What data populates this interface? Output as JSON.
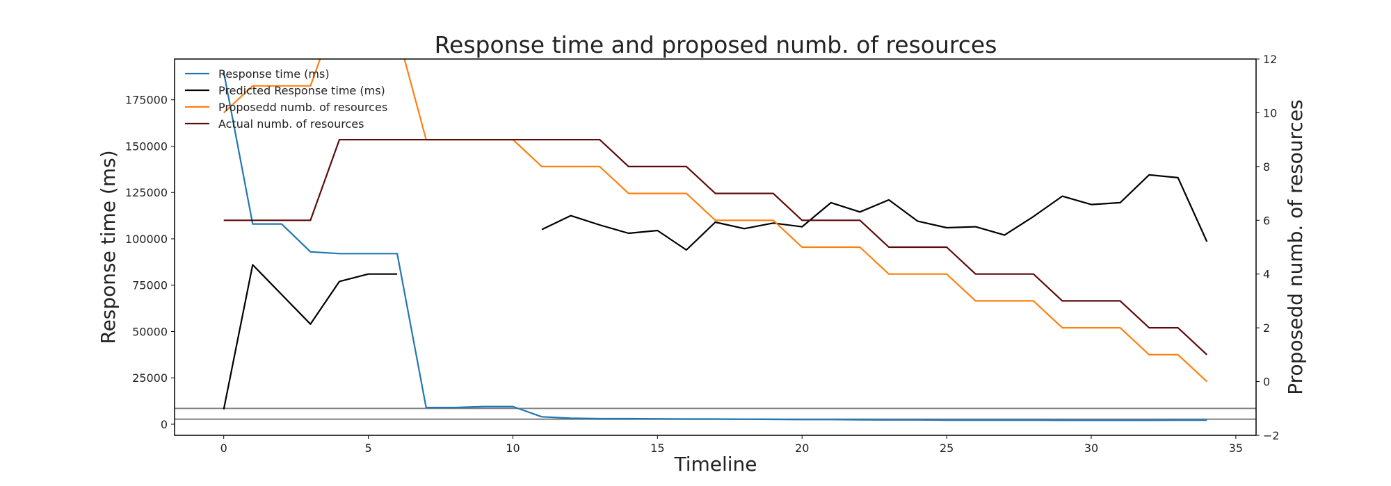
{
  "chart_data": {
    "type": "line",
    "title": "Response time and proposed numb. of resources",
    "xlabel": "Timeline",
    "ylabel": "Response time (ms)",
    "y2label": "Proposedd numb. of resources",
    "xlim": [
      -1.7,
      35.7
    ],
    "ylim": [
      -6000,
      197000
    ],
    "y2lim": [
      -2,
      12
    ],
    "x_ticks": [
      0,
      5,
      10,
      15,
      20,
      25,
      30,
      35
    ],
    "y_ticks": [
      0,
      25000,
      50000,
      75000,
      100000,
      125000,
      150000,
      175000
    ],
    "y2_ticks": [
      -2,
      0,
      2,
      4,
      6,
      8,
      10,
      12
    ],
    "y_tick_labels": [
      "0",
      "25000",
      "50000",
      "75000",
      "100000",
      "125000",
      "150000",
      "175000"
    ],
    "y2_tick_labels": [
      "−2",
      "0",
      "2",
      "4",
      "6",
      "8",
      "10",
      "12"
    ],
    "legend_position": "upper-left",
    "grid": false,
    "hlines_right_axis": [
      -1.0,
      -1.4
    ],
    "series": [
      {
        "name": "Response time (ms)",
        "axis": "left",
        "color": "#1f77b4",
        "x": [
          0,
          1,
          2,
          3,
          4,
          5,
          6,
          7,
          8,
          9,
          10,
          11,
          12,
          13,
          14,
          15,
          16,
          17,
          18,
          19,
          20,
          21,
          22,
          23,
          24,
          25,
          26,
          27,
          28,
          29,
          30,
          31,
          32,
          33,
          34
        ],
        "values": [
          190000,
          108000,
          108000,
          93000,
          92000,
          92000,
          92000,
          9000,
          9000,
          9500,
          9500,
          4000,
          3200,
          3000,
          3000,
          2900,
          2800,
          2800,
          2700,
          2600,
          2500,
          2500,
          2400,
          2300,
          2300,
          2200,
          2200,
          2200,
          2200,
          2100,
          2100,
          2100,
          2100,
          2200,
          2200
        ]
      },
      {
        "name": "Predicted Response time (ms)",
        "axis": "left",
        "color": "#000000",
        "segments": [
          {
            "x": [
              0,
              1,
              2,
              3,
              4,
              5,
              6
            ],
            "values": [
              8000,
              86000,
              70000,
              54000,
              77000,
              81000,
              81000
            ]
          },
          {
            "x": [
              11,
              12,
              13,
              14,
              15,
              16,
              17,
              18,
              19,
              20,
              21,
              22,
              23,
              24,
              25,
              26,
              27,
              28,
              29,
              30,
              31,
              32,
              33,
              34
            ],
            "values": [
              105000,
              112500,
              107500,
              103000,
              104500,
              94000,
              109000,
              105500,
              108500,
              106500,
              119500,
              114500,
              121000,
              109500,
              106000,
              106500,
              102000,
              112000,
              123000,
              118500,
              119500,
              134500,
              133000,
              98500
            ]
          }
        ]
      },
      {
        "name": "Proposedd numb. of resources",
        "axis": "right",
        "color": "#ff7f0e",
        "x": [
          0,
          1,
          2,
          3,
          4,
          5,
          6,
          7,
          8,
          9,
          10,
          11,
          12,
          13,
          14,
          15,
          16,
          17,
          18,
          19,
          20,
          21,
          22,
          23,
          24,
          25,
          26,
          27,
          28,
          29,
          30,
          31,
          32,
          33,
          34
        ],
        "values": [
          10,
          11,
          11,
          11,
          14,
          14,
          13,
          9,
          9,
          9,
          9,
          8,
          8,
          8,
          7,
          7,
          7,
          6,
          6,
          6,
          5,
          5,
          5,
          4,
          4,
          4,
          3,
          3,
          3,
          2,
          2,
          2,
          1,
          1,
          0
        ]
      },
      {
        "name": "Actual numb. of resources",
        "axis": "right",
        "color": "#5c0a0a",
        "x": [
          0,
          1,
          2,
          3,
          4,
          5,
          6,
          7,
          8,
          9,
          10,
          11,
          12,
          13,
          14,
          15,
          16,
          17,
          18,
          19,
          20,
          21,
          22,
          23,
          24,
          25,
          26,
          27,
          28,
          29,
          30,
          31,
          32,
          33,
          34
        ],
        "values": [
          6,
          6,
          6,
          6,
          9,
          9,
          9,
          9,
          9,
          9,
          9,
          9,
          9,
          9,
          8,
          8,
          8,
          7,
          7,
          7,
          6,
          6,
          6,
          5,
          5,
          5,
          4,
          4,
          4,
          3,
          3,
          3,
          2,
          2,
          1
        ]
      }
    ]
  }
}
